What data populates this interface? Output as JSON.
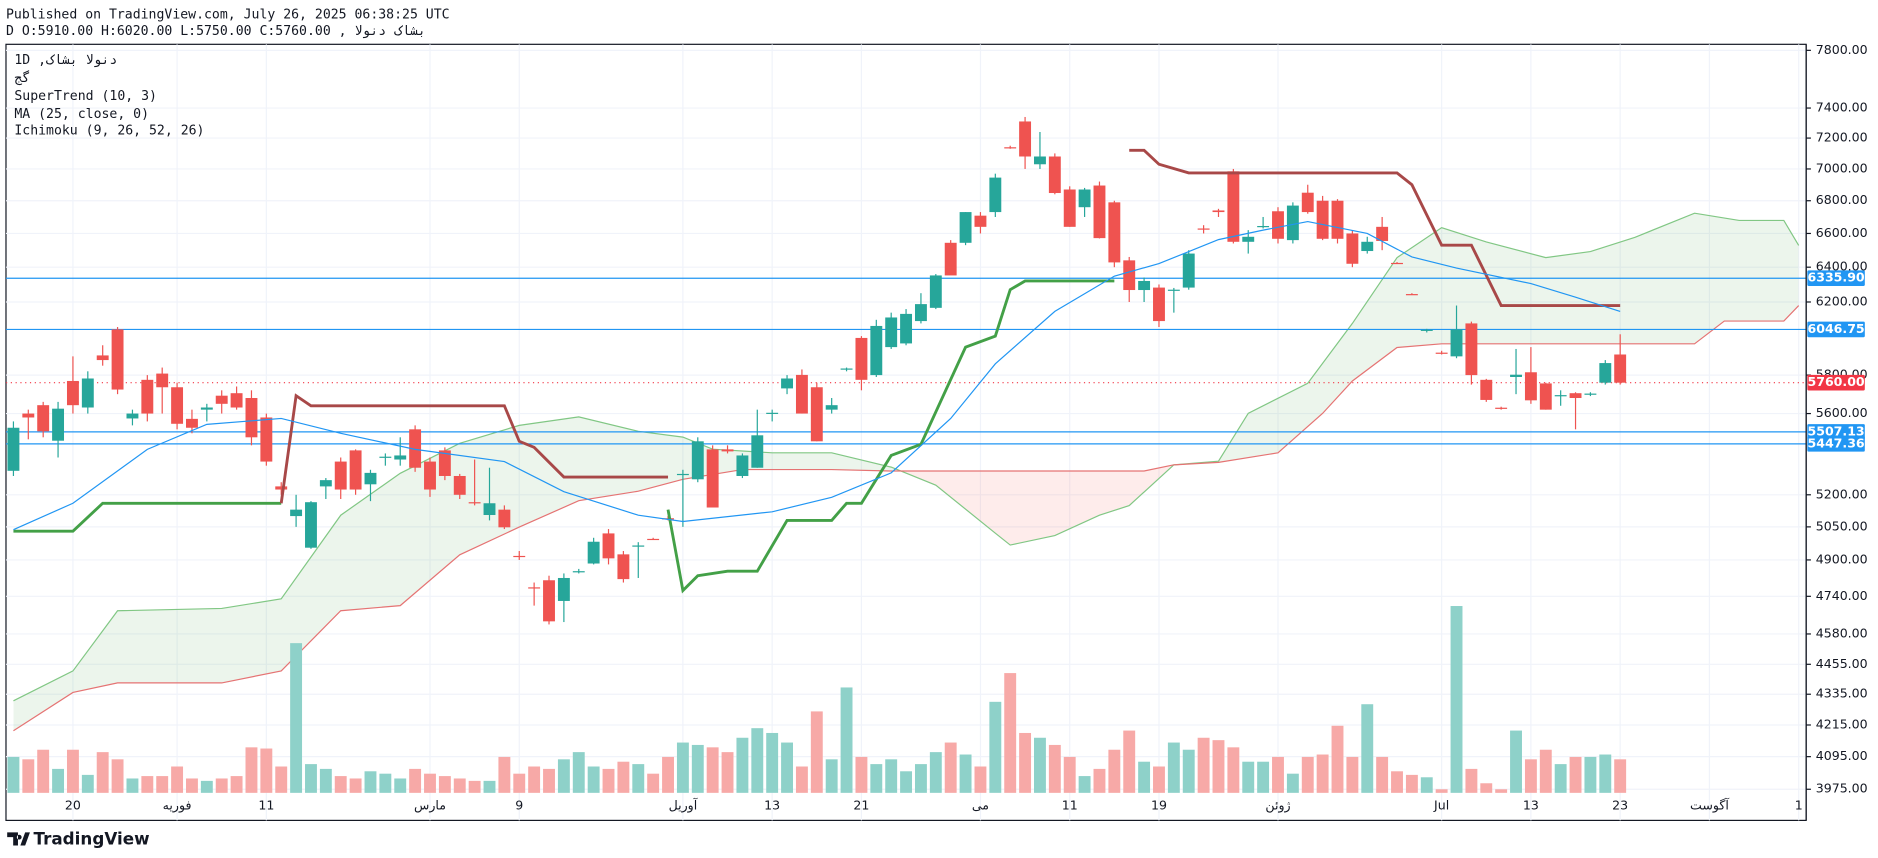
{
  "header": {
    "published": "Published on TradingView.com, July 26, 2025 06:38:25 UTC",
    "symbol_line": "بشاک  دنولا , D O:5910.00 H:6020.00 L:5750.00 C:5760.00"
  },
  "legend": [
    "دنولا  بشاک, 1D",
    "گج",
    "SuperTrend (10, 3)",
    "MA (25, close, 0)",
    "Ichimoku (9, 26, 52, 26)"
  ],
  "footer": "TradingView",
  "chart_data": {
    "type": "candlestick",
    "log_scale": true,
    "grid": true,
    "ylim": [
      3962,
      7843
    ],
    "yticks": [
      {
        "value": 7800,
        "label": "7800.00"
      },
      {
        "value": 7400,
        "label": "7400.00"
      },
      {
        "value": 7200,
        "label": "7200.00"
      },
      {
        "value": 7000,
        "label": "7000.00"
      },
      {
        "value": 6800,
        "label": "6800.00"
      },
      {
        "value": 6600,
        "label": "6600.00"
      },
      {
        "value": 6400,
        "label": "6400.00"
      },
      {
        "value": 6200,
        "label": "6200.00"
      },
      {
        "value": 5800,
        "label": "5800.00"
      },
      {
        "value": 5600,
        "label": "5600.00"
      },
      {
        "value": 5200,
        "label": "5200.00"
      },
      {
        "value": 5050,
        "label": "5050.00"
      },
      {
        "value": 4900,
        "label": "4900.00"
      },
      {
        "value": 4740,
        "label": "4740.00"
      },
      {
        "value": 4580,
        "label": "4580.00"
      },
      {
        "value": 4455,
        "label": "4455.00"
      },
      {
        "value": 4335,
        "label": "4335.00"
      },
      {
        "value": 4215,
        "label": "4215.00"
      },
      {
        "value": 4095,
        "label": "4095.00"
      },
      {
        "value": 3975,
        "label": "3975.00"
      }
    ],
    "categories": [
      null,
      null,
      null,
      null,
      "20",
      null,
      null,
      null,
      null,
      null,
      null,
      "فوریه",
      null,
      null,
      null,
      null,
      null,
      "11",
      null,
      null,
      null,
      null,
      null,
      null,
      null,
      null,
      null,
      null,
      "مارس",
      null,
      null,
      null,
      null,
      null,
      "9",
      null,
      null,
      null,
      null,
      null,
      null,
      null,
      null,
      null,
      null,
      "آوریل",
      null,
      null,
      null,
      null,
      null,
      "13",
      null,
      null,
      null,
      null,
      null,
      "21",
      null,
      null,
      null,
      null,
      null,
      null,
      null,
      "می",
      null,
      null,
      null,
      null,
      null,
      "11",
      null,
      null,
      null,
      null,
      null,
      "19",
      null,
      null,
      null,
      null,
      null,
      null,
      null,
      "ژوئن",
      null,
      null,
      null,
      null,
      null,
      null,
      null,
      null,
      null,
      null,
      "Jul",
      null,
      null,
      null,
      null,
      null,
      "13",
      null,
      null,
      null,
      null,
      null,
      "23",
      null,
      null,
      null,
      null,
      null,
      "آگوست",
      null,
      null,
      null,
      null,
      null,
      "1"
    ],
    "up_color": "#26a69a",
    "down_color": "#ef5350",
    "open": [
      5315,
      5600,
      5643,
      5463,
      5769,
      5631,
      5905,
      6047,
      5575,
      5775,
      5808,
      5736,
      5573,
      5620,
      5692,
      5705,
      5680,
      5580,
      5240,
      5100,
      4955,
      5240,
      5360,
      5415,
      5250,
      5380,
      5370,
      5520,
      5360,
      5415,
      5290,
      5165,
      5105,
      5130,
      4918,
      4779,
      4810,
      4720,
      4848,
      4884,
      5020,
      4925,
      4962,
      4995,
      5090,
      5300,
      5274,
      5420,
      5420,
      5290,
      5330,
      5600,
      5730,
      5801,
      5736,
      5620,
      5830,
      6000,
      5800,
      5950,
      5970,
      6093,
      6167,
      6544,
      6544,
      6708,
      6730,
      7140,
      7310,
      7030,
      7080,
      6870,
      6760,
      6895,
      6790,
      6440,
      6268,
      6282,
      6268,
      6282,
      6630,
      6740,
      6985,
      6550,
      6640,
      6735,
      6560,
      6850,
      6800,
      6800,
      6600,
      6495,
      6640,
      6425,
      6245,
      6040,
      5920,
      5900,
      6080,
      5775,
      5630,
      5790,
      5815,
      5756,
      5692,
      5705,
      5700,
      5760,
      5910,
      null,
      null,
      null,
      null,
      null,
      null,
      null,
      null,
      null,
      null,
      null,
      null
    ],
    "high": [
      5560,
      5620,
      5660,
      5660,
      5900,
      5820,
      5960,
      6060,
      5620,
      5800,
      5840,
      5760,
      5620,
      5650,
      5720,
      5740,
      5720,
      5600,
      5260,
      5200,
      5170,
      5280,
      5380,
      5420,
      5320,
      5400,
      5480,
      5540,
      5380,
      5430,
      5300,
      5370,
      5330,
      5150,
      4940,
      4800,
      4830,
      4840,
      4860,
      5000,
      5040,
      4940,
      4980,
      5000,
      5100,
      5320,
      5480,
      5440,
      5440,
      5400,
      5620,
      5620,
      5800,
      5830,
      5760,
      5680,
      5840,
      6010,
      6100,
      6140,
      6160,
      6250,
      6360,
      6560,
      6730,
      6730,
      6970,
      7150,
      7340,
      7240,
      7100,
      6890,
      6880,
      6920,
      6800,
      6460,
      6340,
      6300,
      6280,
      6500,
      6650,
      6750,
      7000,
      6620,
      6700,
      6760,
      6790,
      6900,
      6830,
      6810,
      6620,
      6580,
      6700,
      6430,
      6250,
      6050,
      5930,
      6180,
      6090,
      5780,
      5635,
      5940,
      5950,
      5760,
      5720,
      5710,
      5710,
      5880,
      6020,
      null,
      null,
      null,
      null,
      null,
      null,
      null,
      null,
      null,
      null,
      null,
      null
    ],
    "low": [
      5290,
      5470,
      5480,
      5380,
      5600,
      5600,
      5850,
      5700,
      5540,
      5560,
      5600,
      5520,
      5500,
      5560,
      5600,
      5620,
      5440,
      5340,
      5200,
      5050,
      4950,
      5180,
      5180,
      5200,
      5170,
      5340,
      5340,
      5310,
      5190,
      5270,
      5180,
      5150,
      5080,
      5040,
      4900,
      4700,
      4620,
      4630,
      4840,
      4880,
      4880,
      4800,
      4820,
      4990,
      5080,
      5050,
      5260,
      5140,
      5400,
      5280,
      5330,
      5560,
      5700,
      5600,
      5460,
      5600,
      5820,
      5720,
      5790,
      5940,
      5960,
      6080,
      6160,
      6380,
      6530,
      6600,
      6700,
      7130,
      7000,
      7000,
      6840,
      6640,
      6700,
      6570,
      6400,
      6200,
      6200,
      6060,
      6140,
      6270,
      6600,
      6700,
      6540,
      6480,
      6630,
      6540,
      6540,
      6720,
      6560,
      6540,
      6400,
      6480,
      6500,
      6420,
      6240,
      6030,
      5910,
      5890,
      5750,
      5660,
      5620,
      5700,
      5650,
      5620,
      5640,
      5520,
      5690,
      5750,
      5750,
      null,
      null,
      null,
      null,
      null,
      null,
      null,
      null,
      null,
      null,
      null,
      null
    ],
    "close": [
      5528,
      5580,
      5510,
      5625,
      5643,
      5782,
      5880,
      5724,
      5600,
      5600,
      5736,
      5548,
      5528,
      5631,
      5650,
      5631,
      5480,
      5360,
      5225,
      5130,
      5165,
      5270,
      5225,
      5225,
      5305,
      5384,
      5390,
      5330,
      5225,
      5290,
      5200,
      5160,
      5160,
      5048,
      4915,
      4775,
      4633,
      4820,
      4850,
      4982,
      4907,
      4815,
      4965,
      4990,
      5085,
      5300,
      5460,
      5140,
      5410,
      5390,
      5490,
      5604,
      5782,
      5600,
      5460,
      5643,
      5835,
      5775,
      6066,
      6113,
      6133,
      6188,
      6352,
      6352,
      6730,
      6640,
      6945,
      7135,
      7080,
      7080,
      6848,
      6640,
      6870,
      6572,
      6428,
      6268,
      6320,
      6093,
      6270,
      6480,
      6628,
      6730,
      6550,
      6580,
      6645,
      6568,
      6770,
      6730,
      6568,
      6568,
      6420,
      6550,
      6555,
      6420,
      6240,
      6045,
      5915,
      6047,
      5800,
      5670,
      5625,
      5802,
      5668,
      5620,
      5695,
      5680,
      5703,
      5864,
      5760,
      null,
      null,
      null,
      null,
      null,
      null,
      null,
      null,
      null,
      null,
      null,
      null
    ],
    "volume": [
      30,
      28,
      36,
      20,
      36,
      15,
      34,
      28,
      12,
      14,
      14,
      22,
      12,
      10,
      12,
      14,
      38,
      37,
      22,
      125,
      24,
      20,
      14,
      12,
      18,
      16,
      12,
      20,
      16,
      14,
      12,
      10,
      10,
      30,
      16,
      22,
      20,
      28,
      34,
      22,
      20,
      26,
      24,
      16,
      30,
      42,
      40,
      38,
      34,
      46,
      54,
      50,
      42,
      22,
      68,
      28,
      88,
      30,
      24,
      28,
      18,
      24,
      34,
      42,
      32,
      22,
      76,
      100,
      50,
      46,
      40,
      30,
      14,
      20,
      36,
      52,
      26,
      22,
      42,
      36,
      46,
      44,
      38,
      26,
      26,
      30,
      16,
      30,
      32,
      56,
      30,
      74,
      30,
      18,
      15,
      13,
      3,
      156,
      20,
      8,
      3,
      52,
      28,
      36,
      24,
      30,
      30,
      32,
      28,
      null,
      null,
      null,
      null,
      null,
      null,
      null,
      null,
      null,
      null,
      null,
      null
    ],
    "y2lim": [
      0,
      625
    ],
    "volume_up_color": "#8ed1c9",
    "volume_down_color": "#f7a9a7",
    "overlays": [
      {
        "color": "#43a047",
        "x": [
          0,
          4,
          6,
          18
        ],
        "values": [
          5030,
          5030,
          5160,
          5160
        ]
      },
      {
        "color": "#a84848",
        "x": [
          18,
          19,
          20,
          33,
          34,
          35,
          37,
          44
        ],
        "values": [
          5160,
          5692,
          5640,
          5640,
          5460,
          5430,
          5285,
          5285
        ]
      },
      {
        "color": "#43a047",
        "x": [
          44,
          45,
          46,
          48,
          50,
          52,
          55,
          56,
          57,
          59,
          61,
          64,
          66,
          67,
          68,
          74
        ],
        "values": [
          5130,
          4765,
          4830,
          4850,
          4850,
          5080,
          5080,
          5160,
          5160,
          5390,
          5445,
          5950,
          6010,
          6270,
          6320,
          6320
        ]
      },
      {
        "color": "#a84848",
        "x": [
          75,
          76,
          77,
          79,
          93,
          94,
          96,
          98,
          100,
          108
        ],
        "values": [
          7120,
          7120,
          7030,
          6975,
          6975,
          6900,
          6530,
          6530,
          6180,
          6180
        ]
      },
      {
        "color": "#2196f3",
        "x": [
          0,
          4,
          9,
          13,
          18,
          22,
          27,
          33,
          37,
          42,
          45,
          51,
          55,
          59,
          63,
          66,
          70,
          74,
          77,
          81,
          84,
          87,
          91,
          94,
          97,
          102,
          105,
          108
        ],
        "values": [
          5037,
          5160,
          5420,
          5545,
          5575,
          5500,
          5420,
          5360,
          5215,
          5104,
          5075,
          5120,
          5188,
          5305,
          5575,
          5860,
          6147,
          6348,
          6421,
          6563,
          6620,
          6672,
          6600,
          6460,
          6395,
          6305,
          6227,
          6147
        ]
      }
    ],
    "cloud": {
      "span_a": {
        "color": "#81c784",
        "x": [
          0,
          4,
          7,
          14,
          18,
          22,
          26,
          30,
          34,
          38,
          42,
          45,
          47,
          51,
          55,
          59,
          62,
          66,
          67,
          70,
          73,
          75,
          78,
          81,
          83,
          87,
          90,
          93,
          96,
          99,
          103,
          106,
          109,
          113,
          116,
          119,
          120
        ],
        "values": [
          4309,
          4428,
          4678,
          4688,
          4729,
          5104,
          5303,
          5450,
          5540,
          5583,
          5510,
          5481,
          5421,
          5403,
          5403,
          5333,
          5246,
          5021,
          4967,
          5010,
          5104,
          5149,
          5344,
          5362,
          5601,
          5757,
          6080,
          6456,
          6635,
          6549,
          6456,
          6492,
          6577,
          6723,
          6679,
          6679,
          6528
        ]
      },
      "span_b": {
        "color": "#e57373",
        "x": [
          0,
          4,
          7,
          14,
          18,
          22,
          26,
          30,
          34,
          38,
          42,
          45,
          49,
          55,
          59,
          60,
          76,
          78,
          81,
          85,
          88,
          90,
          93,
          96,
          113,
          115,
          119,
          120
        ],
        "values": [
          4193,
          4342,
          4380,
          4380,
          4428,
          4678,
          4700,
          4923,
          5049,
          5172,
          5217,
          5274,
          5321,
          5321,
          5314,
          5314,
          5314,
          5344,
          5356,
          5403,
          5601,
          5769,
          5948,
          5968,
          5968,
          6093,
          6093,
          6180
        ]
      },
      "up_fill": "rgba(67,160,71,0.10)",
      "down_fill": "rgba(244,67,54,0.10)"
    },
    "price_lines": [
      {
        "value": 6335.9,
        "label": "6335.90",
        "color": "#2196f3",
        "style": "solid"
      },
      {
        "value": 6046.75,
        "label": "6046.75",
        "color": "#2196f3",
        "style": "solid"
      },
      {
        "value": 5760,
        "label": "5760.00",
        "color": "#f23645",
        "style": "dotted"
      },
      {
        "value": 5507.13,
        "label": "5507.13",
        "color": "#2196f3",
        "style": "solid"
      },
      {
        "value": 5447.36,
        "label": "5447.36",
        "color": "#2196f3",
        "style": "solid"
      }
    ]
  }
}
